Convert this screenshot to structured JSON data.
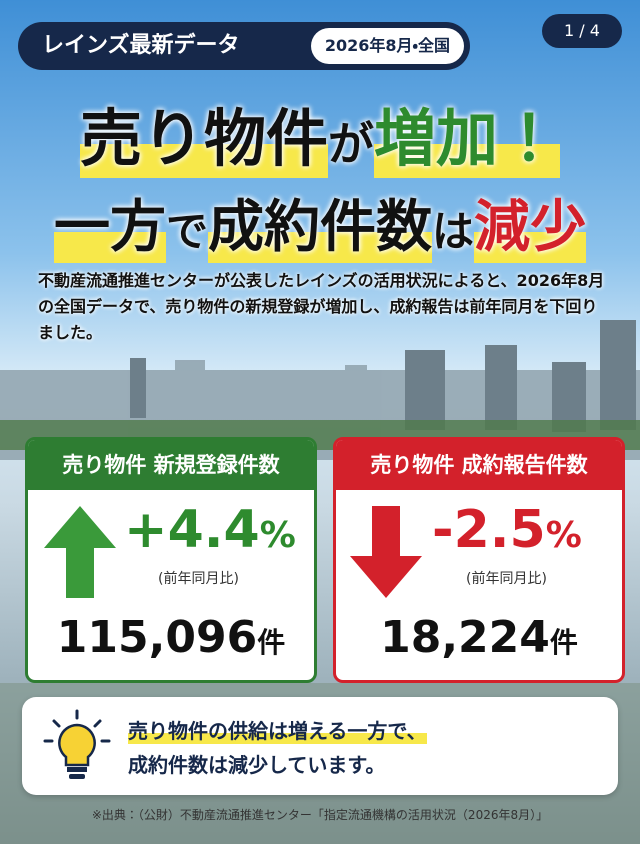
{
  "badge": {
    "label": "レインズ最新データ",
    "period": "2026年8月・全国"
  },
  "page_indicator": "1 / 4",
  "headline": {
    "line1": [
      "売り物件",
      "が",
      "増加！"
    ],
    "line2": [
      "一方",
      "で",
      "成約件数",
      "は",
      "減少"
    ]
  },
  "description": "不動産流通推進センターが公表したレインズの活用状況によると、2026年8月の全国データで、売り物件の新規登録が増加し、成約報告は前年同月を下回りました。",
  "cards": [
    {
      "title": "売り物件 新規登録件数",
      "change": "+4.4",
      "change_unit": "%",
      "note": "(前年同月比)",
      "count": "115,096",
      "count_unit": "件"
    },
    {
      "title": "売り物件 成約報告件数",
      "change": "-2.5",
      "change_unit": "%",
      "note": "(前年同月比)",
      "count": "18,224",
      "count_unit": "件"
    }
  ],
  "summary": {
    "line1": "売り物件の供給は増える一方で、",
    "line2": "成約件数は減少しています。"
  },
  "source": "※出典：（公財）不動産流通推進センター「指定流通機構の活用状況（2026年8月）」"
}
